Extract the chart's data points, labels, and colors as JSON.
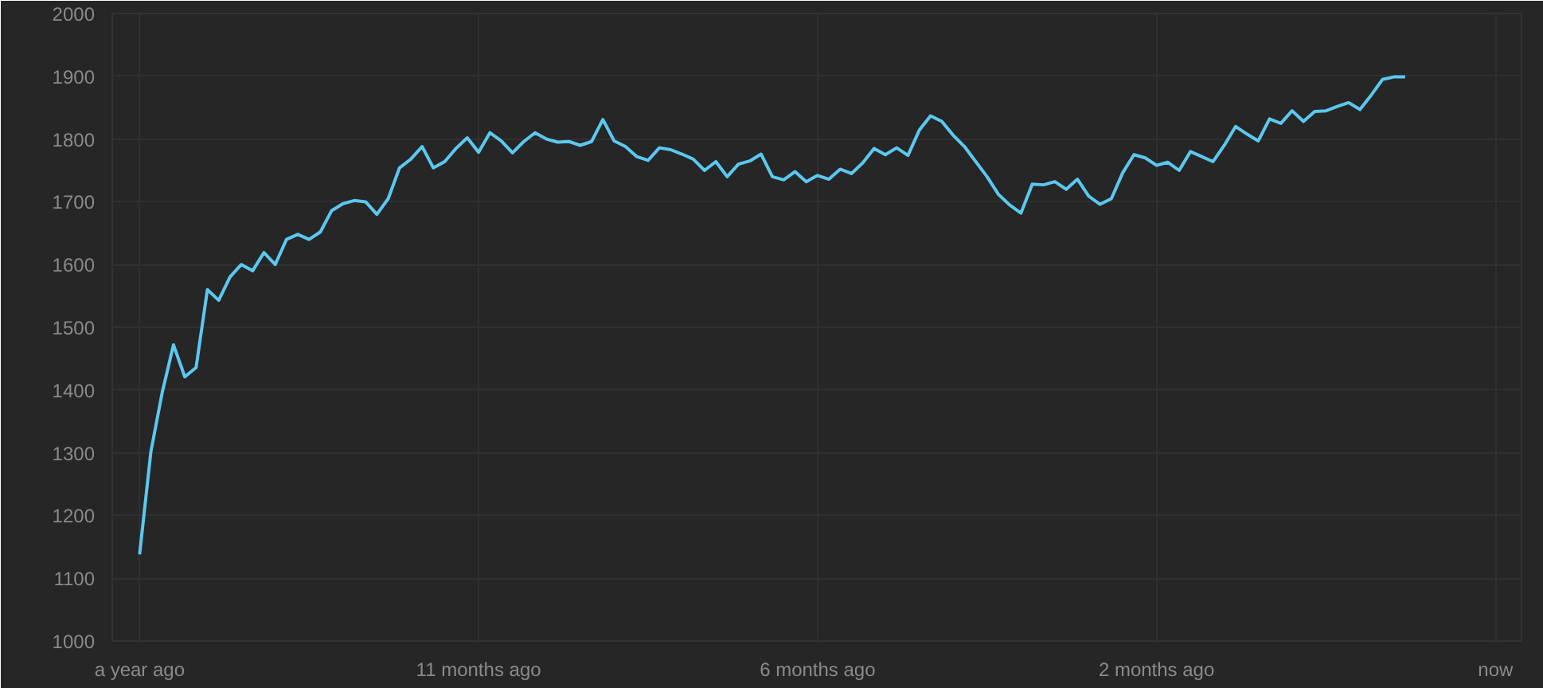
{
  "chart_data": {
    "type": "line",
    "categories": [
      "a year ago",
      null,
      null,
      null,
      null,
      null,
      null,
      null,
      null,
      null,
      null,
      null,
      null,
      null,
      null,
      null,
      null,
      null,
      null,
      null,
      null,
      null,
      null,
      null,
      null,
      null,
      null,
      null,
      null,
      null,
      "11 months ago",
      null,
      null,
      null,
      null,
      null,
      null,
      null,
      null,
      null,
      null,
      null,
      null,
      null,
      null,
      null,
      null,
      null,
      null,
      null,
      null,
      null,
      null,
      null,
      null,
      null,
      null,
      null,
      null,
      null,
      "6 months ago",
      null,
      null,
      null,
      null,
      null,
      null,
      null,
      null,
      null,
      null,
      null,
      null,
      null,
      null,
      null,
      null,
      null,
      null,
      null,
      null,
      null,
      null,
      null,
      null,
      null,
      null,
      null,
      null,
      null,
      "2 months ago",
      null,
      null,
      null,
      null,
      null,
      null,
      null,
      null,
      null,
      null,
      null,
      null,
      null,
      null,
      null,
      null,
      null,
      null,
      null,
      null,
      null,
      null,
      null,
      null,
      null,
      null,
      null,
      null,
      null,
      "now"
    ],
    "series": [
      {
        "color": "#5bc8f0",
        "values": [
          1138,
          1302,
          1396,
          1472,
          1421,
          1436,
          1560,
          1543,
          1580,
          1600,
          1590,
          1619,
          1600,
          1640,
          1648,
          1640,
          1652,
          1686,
          1697,
          1702,
          1700,
          1680,
          1705,
          1754,
          1768,
          1788,
          1754,
          1764,
          1785,
          1802,
          1779,
          1810,
          1797,
          1778,
          1796,
          1810,
          1800,
          1795,
          1796,
          1790,
          1796,
          1831,
          1797,
          1788,
          1772,
          1766,
          1786,
          1783,
          1776,
          1768,
          1750,
          1764,
          1740,
          1760,
          1765,
          1776,
          1740,
          1735,
          1748,
          1732,
          1742,
          1736,
          1752,
          1745,
          1762,
          1785,
          1775,
          1786,
          1774,
          1814,
          1837,
          1828,
          1806,
          1788,
          1764,
          1740,
          1712,
          1695,
          1682,
          1728,
          1727,
          1732,
          1720,
          1736,
          1709,
          1696,
          1705,
          1746,
          1775,
          1770,
          1758,
          1763,
          1750,
          1780,
          1772,
          1764,
          1790,
          1820,
          1808,
          1797,
          1832,
          1825,
          1845,
          1828,
          1844,
          1845,
          1852,
          1858,
          1847,
          1870,
          1895,
          1899,
          1899,
          null,
          null,
          null,
          null,
          null,
          null,
          null,
          null
        ]
      }
    ],
    "ylim": [
      1000,
      2000
    ],
    "yticks": [
      1000,
      1100,
      1200,
      1300,
      1400,
      1500,
      1600,
      1700,
      1800,
      1900,
      2000
    ],
    "grid": true,
    "marker": "none",
    "line_style": "solid"
  }
}
